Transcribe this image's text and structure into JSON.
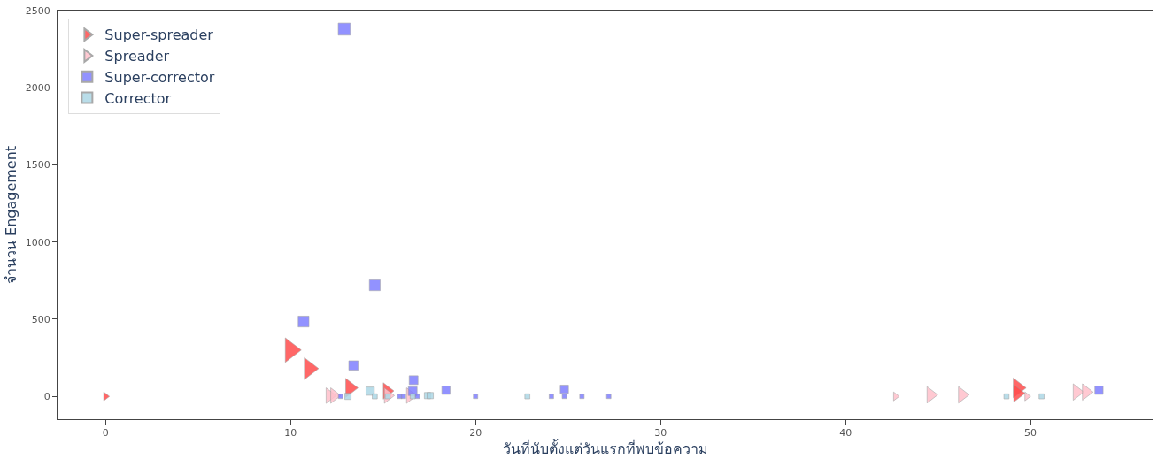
{
  "chart_data": {
    "type": "bubble",
    "xlabel": "วันที่นับตั้งแต่วันแรกที่พบข้อความ",
    "ylabel": "จำนวน Engagement",
    "xlim": [
      -2.6,
      56.6
    ],
    "xticks": [
      0,
      10,
      20,
      30,
      40,
      50
    ],
    "ylim": [
      -148,
      2500
    ],
    "yticks": [
      0,
      500,
      1000,
      1500,
      2000,
      2500
    ],
    "legend": "top left",
    "series": [
      {
        "name": "Super-spreader",
        "color": "#ff4d4d",
        "marker": "triangle",
        "x": [
          0,
          10,
          11,
          13.2,
          15.2,
          49.3,
          49.3
        ],
        "values": [
          0,
          300,
          180,
          55,
          35,
          55,
          20
        ],
        "sizes": [
          0.13,
          1,
          0.8,
          0.6,
          0.45,
          0.65,
          0.5
        ]
      },
      {
        "name": "Spreader",
        "color": "#ffc0cb",
        "marker": "triangle",
        "x": [
          12.1,
          12.35,
          15.25,
          16.45,
          42.7,
          44.6,
          46.3,
          49.8,
          52.5,
          53
        ],
        "values": [
          5,
          5,
          5,
          5,
          0,
          10,
          10,
          0,
          28,
          28
        ],
        "sizes": [
          0.4,
          0.4,
          0.4,
          0.4,
          0.13,
          0.45,
          0.45,
          0.13,
          0.45,
          0.45
        ]
      },
      {
        "name": "Super-corrector",
        "color": "#8080ff",
        "marker": "square",
        "x": [
          12.9,
          14.55,
          10.7,
          13.4,
          16.65,
          16.6,
          18.4,
          24.8,
          53.7,
          12.7,
          15.9,
          16.1,
          16.85,
          20,
          24.1,
          24.8,
          25.75,
          27.2
        ],
        "values": [
          2380,
          720,
          485,
          200,
          105,
          34,
          40,
          46,
          40,
          0,
          0,
          0,
          0,
          0,
          0,
          0,
          0,
          0
        ],
        "sizes": [
          0.75,
          0.6,
          0.6,
          0.45,
          0.4,
          0.4,
          0.35,
          0.35,
          0.35,
          0.1,
          0.1,
          0.1,
          0.1,
          0.1,
          0.1,
          0.1,
          0.1,
          0.1
        ]
      },
      {
        "name": "Corrector",
        "color": "#add8e6",
        "marker": "square",
        "x": [
          13.1,
          14.3,
          14.55,
          15.25,
          16.6,
          17.4,
          17.55,
          22.8,
          48.7,
          50.6
        ],
        "values": [
          0,
          34,
          0,
          0,
          0,
          5,
          5,
          0,
          0,
          0
        ],
        "sizes": [
          0.2,
          0.35,
          0.13,
          0.13,
          0.13,
          0.2,
          0.2,
          0.13,
          0.13,
          0.13
        ]
      }
    ]
  }
}
